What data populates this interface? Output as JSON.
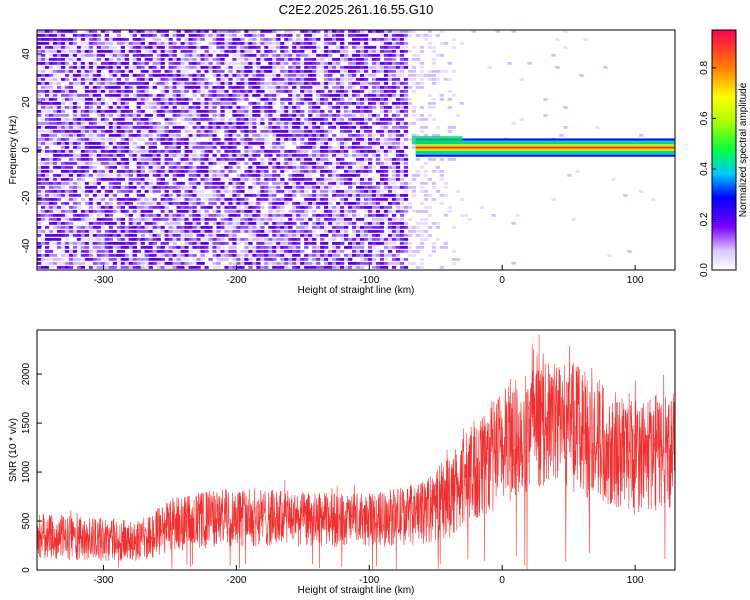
{
  "title": "C2E2.2025.261.16.55.G10",
  "chart_data": [
    {
      "type": "heatmap",
      "xlabel": "Height of straight line (km)",
      "ylabel": "Frequency (Hz)",
      "xlim": [
        -350,
        130
      ],
      "ylim": [
        -50,
        50
      ],
      "xticks": [
        -300,
        -200,
        -100,
        0,
        100
      ],
      "yticks": [
        -40,
        -20,
        0,
        20,
        40
      ],
      "xtick_labels": [
        "-300",
        "-200",
        "-100",
        "0",
        "100"
      ],
      "ytick_labels": [
        "-40",
        "-20",
        "0",
        "20",
        "40"
      ],
      "noise_region_x": [
        -350,
        -70
      ],
      "noise_fade_x": [
        -70,
        -30
      ],
      "signal_band": {
        "x_start": -65,
        "x_end": 130,
        "frequency_center": 1,
        "frequency_halfwidth": 2
      },
      "colorbar": {
        "label": "Normalized spectral amplitude",
        "range": [
          0,
          0.95
        ],
        "ticks": [
          0.0,
          0.2,
          0.4,
          0.6,
          0.8
        ],
        "tick_labels": [
          "0.0",
          "0.2",
          "0.4",
          "0.6",
          "0.8"
        ]
      }
    },
    {
      "type": "line",
      "xlabel": "Height of straight line (km)",
      "ylabel": "SNR (10 * v/v)",
      "xlim": [
        -350,
        130
      ],
      "ylim": [
        0,
        2450
      ],
      "xticks": [
        -300,
        -200,
        -100,
        0,
        100
      ],
      "yticks": [
        0,
        500,
        1000,
        1500,
        2000
      ],
      "xtick_labels": [
        "-300",
        "-200",
        "-100",
        "0",
        "100"
      ],
      "ytick_labels": [
        "0",
        "500",
        "1000",
        "1500",
        "2000"
      ],
      "color": "#f03030",
      "envelope": {
        "x": [
          -350,
          -300,
          -270,
          -250,
          -200,
          -150,
          -100,
          -60,
          -40,
          -20,
          0,
          20,
          40,
          60,
          80,
          100,
          130
        ],
        "low": [
          100,
          90,
          80,
          180,
          230,
          230,
          230,
          250,
          300,
          400,
          600,
          800,
          900,
          750,
          650,
          550,
          600
        ],
        "high": [
          580,
          530,
          500,
          750,
          850,
          800,
          780,
          900,
          1150,
          1550,
          1850,
          2050,
          2150,
          2100,
          1900,
          1750,
          1850
        ]
      }
    }
  ],
  "colors": {
    "line": "#f03030",
    "axis": "#000000"
  }
}
